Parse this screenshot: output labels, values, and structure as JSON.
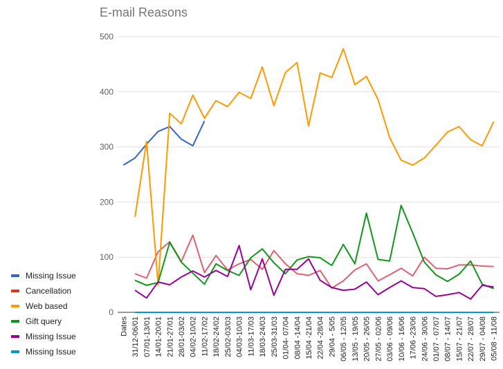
{
  "chart_data": {
    "type": "line",
    "title": "E-mail Reasons",
    "xlabel": "",
    "ylabel": "",
    "ylim": [
      0,
      500
    ],
    "yticks": [
      0,
      100,
      200,
      300,
      400,
      500
    ],
    "grid": true,
    "legend_position": "left-bottom",
    "categories": [
      "Dates",
      "31/12-06/01",
      "07/01-13/01",
      "14/01-20/01",
      "21/01-27/01",
      "28/01-03/02",
      "04/02-10/02",
      "11/02-17/02",
      "18/02-24/02",
      "25/02-03/03",
      "04/03-10/03",
      "11/03-17/03",
      "18/03-24/03",
      "25/03-31/03",
      "01/04- 07/04",
      "08/04 -14/04",
      "15/04 -21/04",
      "22/04 -28/04",
      "29/04 - 5/05",
      "06/05 - 12/05",
      "13/05 - 19/05",
      "20/05 - 26/05",
      "27/05 - 02/06",
      "03/06 - 09/06",
      "10/06 - 16/06",
      "17/06 -23/06",
      "24/06 - 30/06",
      "01/07 - 07/07",
      "08/07 - 14/07",
      "15/07 - 21/07",
      "22/07 - 28/07",
      "29/07 - 04/08",
      "05/08 - 11/08"
    ],
    "series": [
      {
        "name": "Missing Issue",
        "color": "#3366cc",
        "values": [
          267,
          280,
          305,
          328,
          337,
          314,
          302,
          347,
          null,
          null,
          null,
          null,
          null,
          null,
          null,
          null,
          null,
          null,
          null,
          null,
          null,
          null,
          null,
          null,
          null,
          null,
          null,
          null,
          null,
          null,
          null,
          null,
          null
        ]
      },
      {
        "name": "Cancellation",
        "color": "#dc3912",
        "values": [
          null,
          70,
          62,
          110,
          128,
          92,
          140,
          72,
          103,
          77,
          88,
          96,
          78,
          112,
          88,
          70,
          67,
          76,
          44,
          57,
          77,
          88,
          57,
          68,
          80,
          66,
          100,
          80,
          79,
          86,
          86,
          84,
          83
        ]
      },
      {
        "name": "Web based",
        "color": "#ff9900",
        "values": [
          null,
          173,
          310,
          50,
          361,
          342,
          394,
          352,
          384,
          373,
          399,
          388,
          445,
          375,
          435,
          453,
          338,
          434,
          426,
          478,
          413,
          428,
          386,
          317,
          276,
          267,
          280,
          303,
          327,
          337,
          313,
          302,
          346
        ]
      },
      {
        "name": "Gift query",
        "color": "#109618",
        "values": [
          null,
          58,
          49,
          54,
          127,
          91,
          71,
          51,
          88,
          76,
          67,
          99,
          115,
          90,
          70,
          95,
          101,
          99,
          85,
          123,
          88,
          180,
          96,
          93,
          194,
          144,
          91,
          68,
          56,
          69,
          93,
          51,
          43
        ]
      },
      {
        "name": "Missing Issue",
        "color": "#990099",
        "values": [
          null,
          40,
          26,
          55,
          50,
          64,
          75,
          64,
          76,
          65,
          121,
          41,
          97,
          31,
          78,
          78,
          97,
          58,
          45,
          40,
          42,
          55,
          32,
          45,
          57,
          45,
          43,
          29,
          32,
          36,
          24,
          49,
          46
        ]
      },
      {
        "name": "Missing Issue",
        "color": "#0099c6",
        "values": [
          null,
          0,
          0,
          0,
          0,
          0,
          0,
          0,
          0,
          0,
          0,
          0,
          0,
          0,
          0,
          0,
          0,
          0,
          0,
          0,
          0,
          0,
          0,
          0,
          0,
          0,
          0,
          0,
          0,
          0,
          0,
          0,
          0
        ]
      }
    ],
    "overlay_series": {
      "name": "Cancellation",
      "color": "#e06070"
    }
  }
}
